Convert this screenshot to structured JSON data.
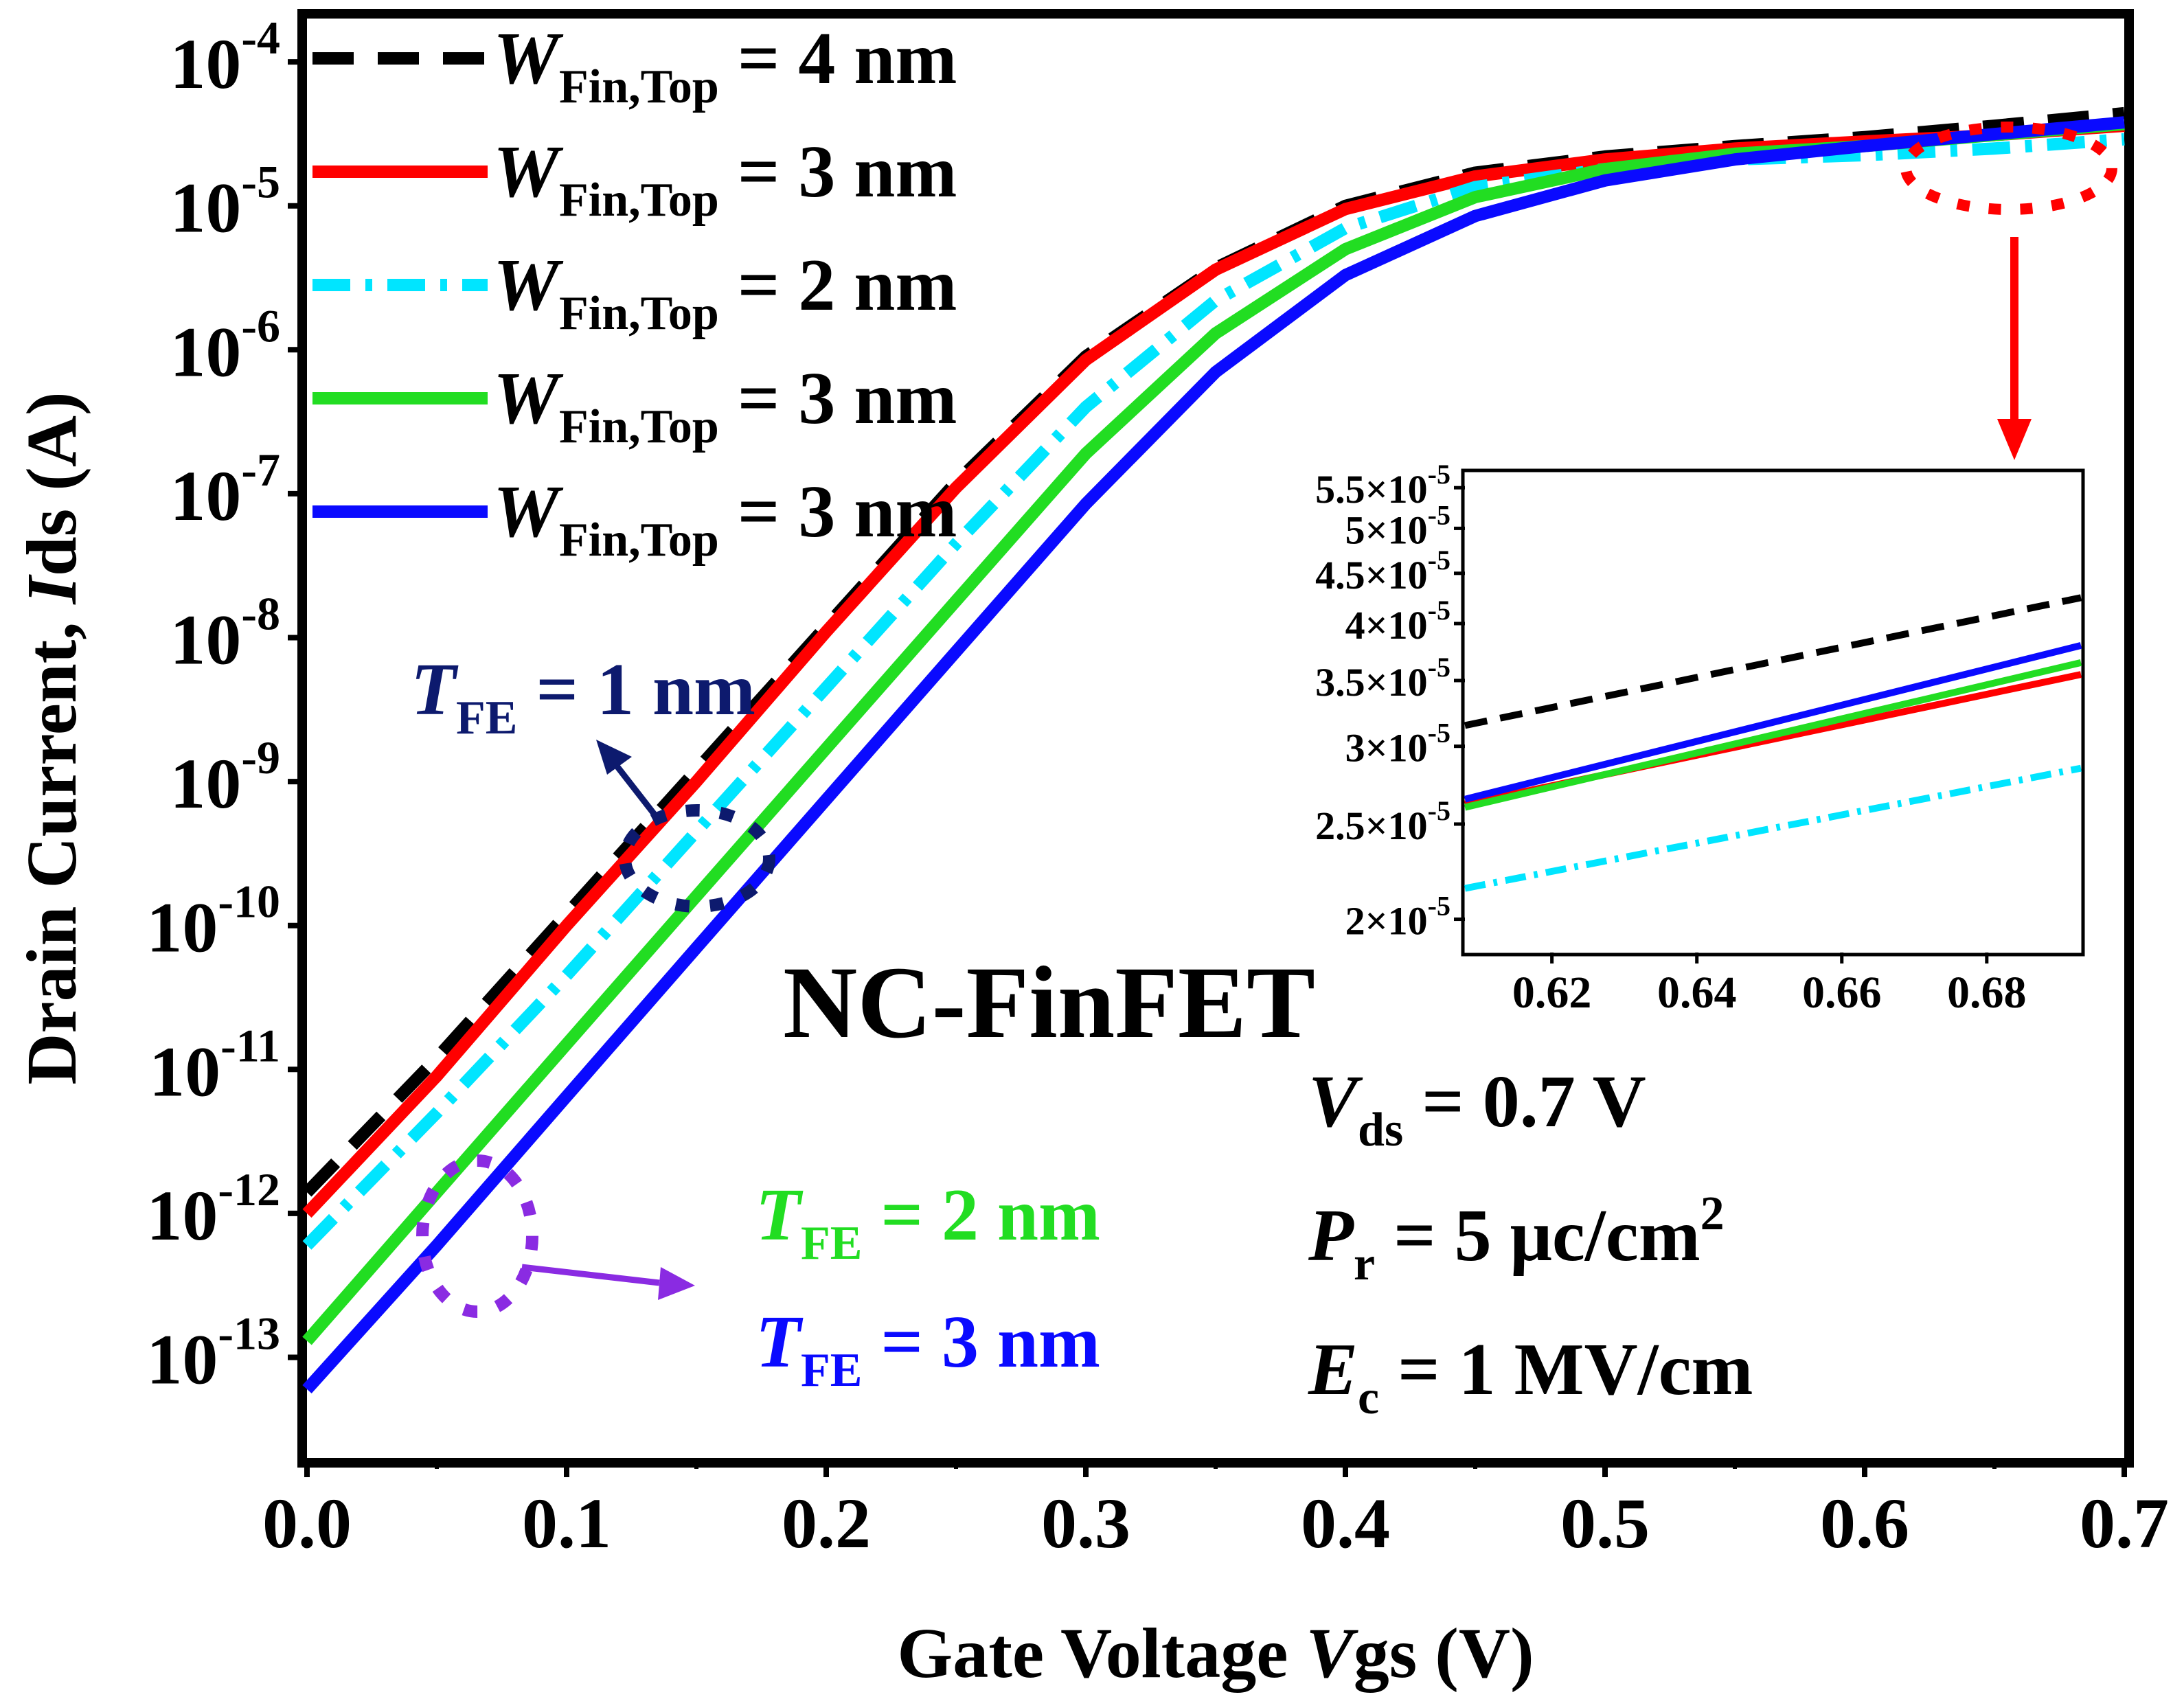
{
  "chart_data": {
    "type": "line",
    "xlabel": {
      "pre": "Gate Voltage ",
      "italic": "V",
      "post": "gs (V)"
    },
    "ylabel": {
      "pre": "Drain Current, ",
      "italic": "I",
      "post": "ds (A)"
    },
    "x_scale": "linear",
    "y_scale": "log",
    "xlim": [
      0.0,
      0.7
    ],
    "ylim": [
      2e-14,
      0.0002
    ],
    "x_ticks": [
      "0.0",
      "0.1",
      "0.2",
      "0.3",
      "0.4",
      "0.5",
      "0.6",
      "0.7"
    ],
    "y_ticks": [
      {
        "base": "10",
        "exp": "-4"
      },
      {
        "base": "10",
        "exp": "-5"
      },
      {
        "base": "10",
        "exp": "-6"
      },
      {
        "base": "10",
        "exp": "-7"
      },
      {
        "base": "10",
        "exp": "-8"
      },
      {
        "base": "10",
        "exp": "-9"
      },
      {
        "base": "10",
        "exp": "-10"
      },
      {
        "base": "10",
        "exp": "-11"
      },
      {
        "base": "10",
        "exp": "-12"
      },
      {
        "base": "10",
        "exp": "-13"
      }
    ],
    "legend": {
      "placement": "top-left",
      "var": "W",
      "sub": "Fin,Top",
      "entries": [
        "= 4 nm",
        "= 3 nm",
        "= 2 nm",
        "= 3 nm",
        "= 3 nm"
      ]
    },
    "series": [
      {
        "color": "#000000",
        "style": "dashed",
        "x": [
          0.0,
          0.05,
          0.1,
          0.15,
          0.2,
          0.25,
          0.3,
          0.35,
          0.4,
          0.45,
          0.5,
          0.55,
          0.6,
          0.65,
          0.7
        ],
        "y": [
          1.4e-12,
          1.2e-11,
          1.2e-10,
          1.2e-09,
          1.2e-08,
          1.2e-07,
          9e-07,
          3.7e-06,
          1e-05,
          1.7e-05,
          2.2e-05,
          2.6e-05,
          3e-05,
          3.6e-05,
          4.4e-05
        ]
      },
      {
        "color": "#ff0000",
        "style": "solid",
        "x": [
          0.0,
          0.05,
          0.1,
          0.15,
          0.2,
          0.25,
          0.3,
          0.35,
          0.4,
          0.45,
          0.5,
          0.55,
          0.6,
          0.65,
          0.7
        ],
        "y": [
          1e-12,
          9e-12,
          1e-10,
          1e-09,
          1.1e-08,
          1.1e-07,
          8.5e-07,
          3.6e-06,
          9.5e-06,
          1.6e-05,
          2.1e-05,
          2.5e-05,
          2.8e-05,
          3.1e-05,
          3.6e-05
        ]
      },
      {
        "color": "#00e5ff",
        "style": "dash-dot",
        "x": [
          0.0,
          0.05,
          0.1,
          0.15,
          0.2,
          0.25,
          0.3,
          0.35,
          0.4,
          0.45,
          0.5,
          0.55,
          0.6,
          0.65,
          0.7
        ],
        "y": [
          6e-13,
          5e-12,
          4.5e-11,
          4.5e-10,
          4.5e-09,
          4.5e-08,
          4e-07,
          2.2e-06,
          7e-06,
          1.35e-05,
          1.8e-05,
          2.1e-05,
          2.25e-05,
          2.5e-05,
          2.9e-05
        ]
      },
      {
        "color": "#22dd22",
        "style": "solid",
        "x": [
          0.0,
          0.05,
          0.1,
          0.15,
          0.2,
          0.25,
          0.3,
          0.35,
          0.4,
          0.45,
          0.5,
          0.55,
          0.6,
          0.65,
          0.7
        ],
        "y": [
          1.3e-13,
          1.4e-12,
          1.5e-11,
          1.6e-10,
          1.7e-09,
          1.8e-08,
          1.9e-07,
          1.3e-06,
          5e-06,
          1.15e-05,
          1.8e-05,
          2.3e-05,
          2.6e-05,
          3.1e-05,
          3.7e-05
        ]
      },
      {
        "color": "#0a0aff",
        "style": "solid",
        "x": [
          0.0,
          0.05,
          0.1,
          0.15,
          0.2,
          0.25,
          0.3,
          0.35,
          0.4,
          0.45,
          0.5,
          0.55,
          0.6,
          0.65,
          0.7
        ],
        "y": [
          6e-14,
          6e-13,
          6.5e-12,
          7e-11,
          7.5e-10,
          8e-09,
          8.5e-08,
          7e-07,
          3.3e-06,
          8.5e-06,
          1.5e-05,
          2.1e-05,
          2.6e-05,
          3.15e-05,
          3.8e-05
        ]
      }
    ],
    "inset": {
      "xlim": [
        0.608,
        0.693
      ],
      "ylim": [
        1.85e-05,
        5.7e-05
      ],
      "y_scale": "log",
      "x_ticks": [
        "0.62",
        "0.64",
        "0.66",
        "0.68"
      ],
      "y_ticks": [
        {
          "m": "2",
          "exp": "-5",
          "v": 2e-05
        },
        {
          "m": "2.5",
          "exp": "-5",
          "v": 2.5e-05
        },
        {
          "m": "3",
          "exp": "-5",
          "v": 3e-05
        },
        {
          "m": "3.5",
          "exp": "-5",
          "v": 3.5e-05
        },
        {
          "m": "4",
          "exp": "-5",
          "v": 4e-05
        },
        {
          "m": "4.5",
          "exp": "-5",
          "v": 4.5e-05
        },
        {
          "m": "5",
          "exp": "-5",
          "v": 5e-05
        },
        {
          "m": "5.5",
          "exp": "-5",
          "v": 5.5e-05
        }
      ],
      "series": [
        {
          "color": "#000000",
          "style": "dashed",
          "x": [
            0.608,
            0.693
          ],
          "y": [
            3.15e-05,
            4.25e-05
          ]
        },
        {
          "color": "#ff0000",
          "style": "solid",
          "x": [
            0.608,
            0.693
          ],
          "y": [
            2.62e-05,
            3.55e-05
          ]
        },
        {
          "color": "#00e5ff",
          "style": "dash-dot",
          "x": [
            0.608,
            0.693
          ],
          "y": [
            2.15e-05,
            2.85e-05
          ]
        },
        {
          "color": "#22dd22",
          "style": "solid",
          "x": [
            0.608,
            0.693
          ],
          "y": [
            2.6e-05,
            3.65e-05
          ]
        },
        {
          "color": "#0a0aff",
          "style": "solid",
          "x": [
            0.608,
            0.693
          ],
          "y": [
            2.65e-05,
            3.8e-05
          ]
        }
      ]
    },
    "annotations": {
      "device": "NC-FinFET",
      "tfe1": {
        "var": "T",
        "sub": "FE",
        "text": " = 1 nm",
        "color": "#0d1a6e"
      },
      "tfe2": {
        "var": "T",
        "sub": "FE",
        "text": " = 2 nm",
        "color": "#22dd22"
      },
      "tfe3": {
        "var": "T",
        "sub": "FE",
        "text": " = 3 nm",
        "color": "#0a0aff"
      },
      "vds": {
        "var": "V",
        "sub": "ds",
        "text": " = 0.7 V"
      },
      "pr": {
        "var": "P",
        "sub": "r",
        "text": " = 5 μc/cm",
        "sup": "2"
      },
      "ec": {
        "var": "E",
        "sub": "c",
        "text": " = 1 MV/cm"
      },
      "colors": {
        "navy_marker": "#0d1a6e",
        "purple_marker": "#8a2be2",
        "red_marker": "#ff0000"
      }
    }
  }
}
